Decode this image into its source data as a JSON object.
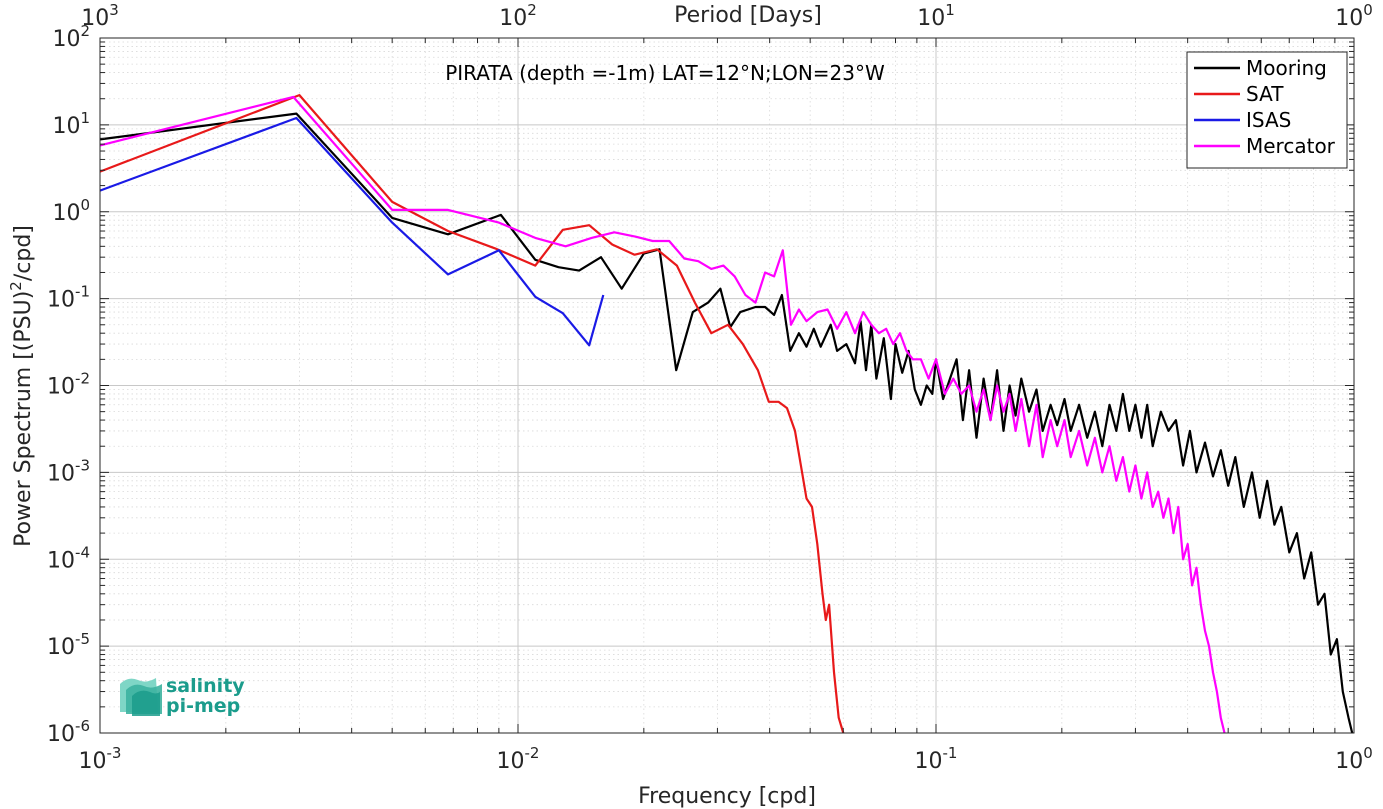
{
  "colors": {
    "mooring": "#000000",
    "sat": "#e8191a",
    "isas": "#1a1ae6",
    "mercator": "#ff00ff",
    "axis": "#262626",
    "grid": "#d9d9d9",
    "logo": "#1b9c8c"
  },
  "chart_data": {
    "type": "line",
    "title": "",
    "annotation": "PIRATA (depth =-1m) LAT=12°N;LON=23°W",
    "xlabel": "Frequency [cpd]",
    "x2label": "Period [Days]",
    "ylabel_main": "Power Spectrum [(PSU)",
    "ylabel_sup": "2",
    "ylabel_tail": "/cpd]",
    "xscale": "log",
    "yscale": "log",
    "xlim": [
      0.001,
      1
    ],
    "ylim": [
      1e-06,
      100
    ],
    "grid": true,
    "legend_position": "top-right",
    "x_ticks": [
      {
        "base": "10",
        "exp": "-3"
      },
      {
        "base": "10",
        "exp": "-2"
      },
      {
        "base": "10",
        "exp": "-1"
      },
      {
        "base": "10",
        "exp": "0"
      }
    ],
    "x2_ticks": [
      {
        "base": "10",
        "exp": "3"
      },
      {
        "base": "10",
        "exp": "2"
      },
      {
        "base": "10",
        "exp": "1"
      },
      {
        "base": "10",
        "exp": "0"
      }
    ],
    "y_ticks": [
      {
        "base": "10",
        "exp": "-6"
      },
      {
        "base": "10",
        "exp": "-5"
      },
      {
        "base": "10",
        "exp": "-4"
      },
      {
        "base": "10",
        "exp": "-3"
      },
      {
        "base": "10",
        "exp": "-2"
      },
      {
        "base": "10",
        "exp": "-1"
      },
      {
        "base": "10",
        "exp": "0"
      },
      {
        "base": "10",
        "exp": "1"
      },
      {
        "base": "10",
        "exp": "2"
      }
    ],
    "series": [
      {
        "name": "Mooring",
        "color_key": "mooring",
        "points": [
          [
            0.001,
            6.8
          ],
          [
            0.00295,
            13.5
          ],
          [
            0.005,
            0.85
          ],
          [
            0.0068,
            0.55
          ],
          [
            0.0091,
            0.92
          ],
          [
            0.011,
            0.28
          ],
          [
            0.0125,
            0.23
          ],
          [
            0.014,
            0.21
          ],
          [
            0.0158,
            0.3
          ],
          [
            0.0177,
            0.13
          ],
          [
            0.02,
            0.33
          ],
          [
            0.0218,
            0.37
          ],
          [
            0.0239,
            0.015
          ],
          [
            0.0262,
            0.07
          ],
          [
            0.0285,
            0.09
          ],
          [
            0.0305,
            0.13
          ],
          [
            0.0322,
            0.047
          ],
          [
            0.034,
            0.07
          ],
          [
            0.037,
            0.08
          ],
          [
            0.039,
            0.08
          ],
          [
            0.041,
            0.065
          ],
          [
            0.0428,
            0.11
          ],
          [
            0.0448,
            0.025
          ],
          [
            0.047,
            0.04
          ],
          [
            0.049,
            0.028
          ],
          [
            0.051,
            0.045
          ],
          [
            0.053,
            0.028
          ],
          [
            0.056,
            0.05
          ],
          [
            0.058,
            0.025
          ],
          [
            0.061,
            0.03
          ],
          [
            0.064,
            0.018
          ],
          [
            0.066,
            0.055
          ],
          [
            0.068,
            0.015
          ],
          [
            0.07,
            0.05
          ],
          [
            0.072,
            0.012
          ],
          [
            0.075,
            0.035
          ],
          [
            0.078,
            0.007
          ],
          [
            0.08,
            0.03
          ],
          [
            0.083,
            0.014
          ],
          [
            0.086,
            0.025
          ],
          [
            0.089,
            0.009
          ],
          [
            0.092,
            0.006
          ],
          [
            0.095,
            0.01
          ],
          [
            0.098,
            0.008
          ],
          [
            0.1,
            0.02
          ],
          [
            0.104,
            0.007
          ],
          [
            0.108,
            0.012
          ],
          [
            0.112,
            0.02
          ],
          [
            0.116,
            0.004
          ],
          [
            0.12,
            0.015
          ],
          [
            0.125,
            0.0025
          ],
          [
            0.13,
            0.012
          ],
          [
            0.135,
            0.004
          ],
          [
            0.14,
            0.015
          ],
          [
            0.145,
            0.003
          ],
          [
            0.15,
            0.01
          ],
          [
            0.155,
            0.0045
          ],
          [
            0.16,
            0.012
          ],
          [
            0.167,
            0.005
          ],
          [
            0.174,
            0.009
          ],
          [
            0.18,
            0.003
          ],
          [
            0.188,
            0.006
          ],
          [
            0.195,
            0.0035
          ],
          [
            0.203,
            0.007
          ],
          [
            0.21,
            0.003
          ],
          [
            0.22,
            0.006
          ],
          [
            0.23,
            0.0025
          ],
          [
            0.24,
            0.005
          ],
          [
            0.25,
            0.002
          ],
          [
            0.26,
            0.006
          ],
          [
            0.27,
            0.003
          ],
          [
            0.28,
            0.008
          ],
          [
            0.29,
            0.003
          ],
          [
            0.3,
            0.006
          ],
          [
            0.31,
            0.0025
          ],
          [
            0.32,
            0.006
          ],
          [
            0.33,
            0.002
          ],
          [
            0.345,
            0.005
          ],
          [
            0.36,
            0.003
          ],
          [
            0.375,
            0.004
          ],
          [
            0.39,
            0.0012
          ],
          [
            0.405,
            0.003
          ],
          [
            0.42,
            0.001
          ],
          [
            0.44,
            0.0022
          ],
          [
            0.46,
            0.0009
          ],
          [
            0.48,
            0.0018
          ],
          [
            0.5,
            0.0007
          ],
          [
            0.52,
            0.0015
          ],
          [
            0.545,
            0.0004
          ],
          [
            0.57,
            0.001
          ],
          [
            0.595,
            0.0003
          ],
          [
            0.62,
            0.0008
          ],
          [
            0.645,
            0.00025
          ],
          [
            0.67,
            0.0004
          ],
          [
            0.7,
            0.00012
          ],
          [
            0.73,
            0.0002
          ],
          [
            0.76,
            6e-05
          ],
          [
            0.79,
            0.00012
          ],
          [
            0.82,
            3e-05
          ],
          [
            0.85,
            4e-05
          ],
          [
            0.88,
            8e-06
          ],
          [
            0.91,
            1.2e-05
          ],
          [
            0.94,
            3e-06
          ],
          [
            0.97,
            1.5e-06
          ],
          [
            0.99,
            1e-06
          ]
        ]
      },
      {
        "name": "SAT",
        "color_key": "sat",
        "points": [
          [
            0.001,
            2.9
          ],
          [
            0.003,
            22
          ],
          [
            0.005,
            1.3
          ],
          [
            0.0068,
            0.6
          ],
          [
            0.0088,
            0.38
          ],
          [
            0.011,
            0.24
          ],
          [
            0.0128,
            0.62
          ],
          [
            0.0148,
            0.7
          ],
          [
            0.0168,
            0.42
          ],
          [
            0.019,
            0.32
          ],
          [
            0.0215,
            0.37
          ],
          [
            0.024,
            0.24
          ],
          [
            0.0265,
            0.09
          ],
          [
            0.029,
            0.04
          ],
          [
            0.0318,
            0.05
          ],
          [
            0.0345,
            0.03
          ],
          [
            0.0375,
            0.015
          ],
          [
            0.0398,
            0.0065
          ],
          [
            0.042,
            0.0065
          ],
          [
            0.044,
            0.0055
          ],
          [
            0.046,
            0.003
          ],
          [
            0.0475,
            0.0012
          ],
          [
            0.049,
            0.0005
          ],
          [
            0.0505,
            0.0004
          ],
          [
            0.052,
            0.00015
          ],
          [
            0.0535,
            4e-05
          ],
          [
            0.0545,
            2e-05
          ],
          [
            0.0555,
            3e-05
          ],
          [
            0.057,
            5e-06
          ],
          [
            0.0585,
            1.5e-06
          ],
          [
            0.06,
            1e-06
          ]
        ]
      },
      {
        "name": "ISAS",
        "color_key": "isas",
        "points": [
          [
            0.001,
            1.75
          ],
          [
            0.00295,
            12
          ],
          [
            0.005,
            0.75
          ],
          [
            0.0068,
            0.19
          ],
          [
            0.009,
            0.36
          ],
          [
            0.011,
            0.105
          ],
          [
            0.0128,
            0.068
          ],
          [
            0.0148,
            0.029
          ],
          [
            0.016,
            0.11
          ]
        ]
      },
      {
        "name": "Mercator",
        "color_key": "mercator",
        "points": [
          [
            0.001,
            5.8
          ],
          [
            0.0029,
            21
          ],
          [
            0.005,
            1.05
          ],
          [
            0.0068,
            1.05
          ],
          [
            0.009,
            0.75
          ],
          [
            0.011,
            0.5
          ],
          [
            0.013,
            0.4
          ],
          [
            0.015,
            0.5
          ],
          [
            0.017,
            0.58
          ],
          [
            0.019,
            0.52
          ],
          [
            0.021,
            0.46
          ],
          [
            0.023,
            0.46
          ],
          [
            0.025,
            0.29
          ],
          [
            0.027,
            0.27
          ],
          [
            0.029,
            0.22
          ],
          [
            0.031,
            0.24
          ],
          [
            0.033,
            0.18
          ],
          [
            0.035,
            0.11
          ],
          [
            0.037,
            0.09
          ],
          [
            0.039,
            0.2
          ],
          [
            0.041,
            0.18
          ],
          [
            0.043,
            0.36
          ],
          [
            0.045,
            0.05
          ],
          [
            0.047,
            0.075
          ],
          [
            0.049,
            0.055
          ],
          [
            0.052,
            0.07
          ],
          [
            0.055,
            0.075
          ],
          [
            0.058,
            0.045
          ],
          [
            0.061,
            0.07
          ],
          [
            0.064,
            0.04
          ],
          [
            0.067,
            0.07
          ],
          [
            0.07,
            0.05
          ],
          [
            0.073,
            0.04
          ],
          [
            0.076,
            0.045
          ],
          [
            0.079,
            0.03
          ],
          [
            0.082,
            0.04
          ],
          [
            0.085,
            0.025
          ],
          [
            0.088,
            0.02
          ],
          [
            0.092,
            0.02
          ],
          [
            0.096,
            0.012
          ],
          [
            0.1,
            0.02
          ],
          [
            0.105,
            0.008
          ],
          [
            0.11,
            0.012
          ],
          [
            0.115,
            0.008
          ],
          [
            0.12,
            0.01
          ],
          [
            0.125,
            0.005
          ],
          [
            0.13,
            0.009
          ],
          [
            0.135,
            0.004
          ],
          [
            0.14,
            0.01
          ],
          [
            0.145,
            0.005
          ],
          [
            0.15,
            0.008
          ],
          [
            0.155,
            0.003
          ],
          [
            0.16,
            0.007
          ],
          [
            0.167,
            0.002
          ],
          [
            0.174,
            0.006
          ],
          [
            0.18,
            0.0015
          ],
          [
            0.188,
            0.004
          ],
          [
            0.195,
            0.002
          ],
          [
            0.203,
            0.004
          ],
          [
            0.21,
            0.0015
          ],
          [
            0.22,
            0.003
          ],
          [
            0.23,
            0.0012
          ],
          [
            0.24,
            0.0025
          ],
          [
            0.25,
            0.001
          ],
          [
            0.26,
            0.002
          ],
          [
            0.27,
            0.0008
          ],
          [
            0.28,
            0.0015
          ],
          [
            0.29,
            0.0006
          ],
          [
            0.3,
            0.0012
          ],
          [
            0.31,
            0.0005
          ],
          [
            0.32,
            0.001
          ],
          [
            0.33,
            0.0004
          ],
          [
            0.34,
            0.0006
          ],
          [
            0.35,
            0.0003
          ],
          [
            0.36,
            0.0005
          ],
          [
            0.37,
            0.0002
          ],
          [
            0.38,
            0.0004
          ],
          [
            0.39,
            0.0001
          ],
          [
            0.4,
            0.00015
          ],
          [
            0.41,
            5e-05
          ],
          [
            0.42,
            8e-05
          ],
          [
            0.43,
            3e-05
          ],
          [
            0.44,
            1.5e-05
          ],
          [
            0.45,
            1e-05
          ],
          [
            0.46,
            5e-06
          ],
          [
            0.47,
            3e-06
          ],
          [
            0.48,
            1.5e-06
          ],
          [
            0.49,
            1e-06
          ]
        ]
      }
    ]
  },
  "logo": {
    "line1": "salinity",
    "line2": "pi-mep"
  }
}
